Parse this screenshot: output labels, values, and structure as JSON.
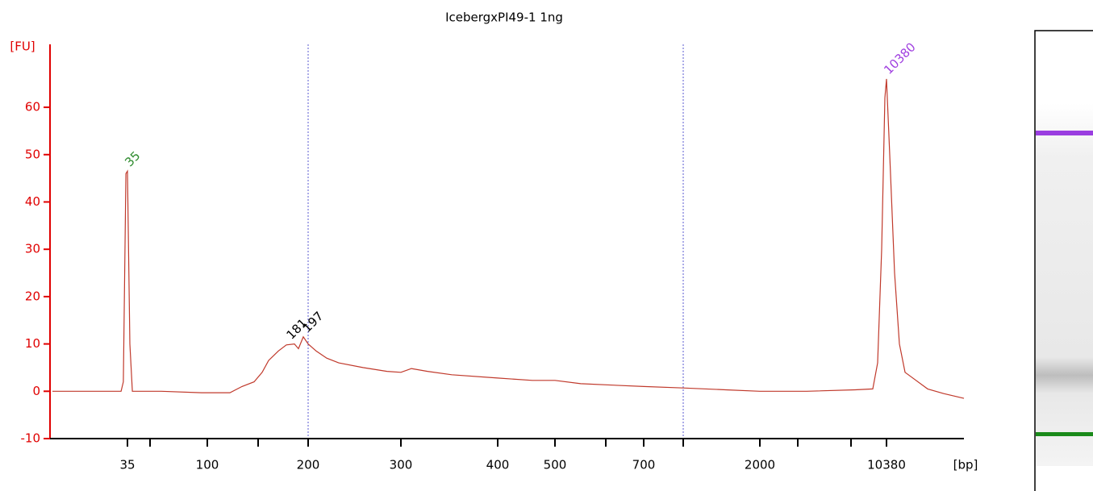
{
  "chart_data": {
    "type": "line",
    "title": "IcebergxPI49-1 1ng",
    "y_label": "[FU]",
    "x_label": "[bp]",
    "color": "#c0392b",
    "axis_color": "#e00000",
    "xlim": [
      15,
      15500
    ],
    "xticks": [
      35,
      100,
      200,
      300,
      400,
      500,
      700,
      2000,
      10380
    ],
    "ylim": [
      -10,
      73.3
    ],
    "yticks": [
      -10,
      0,
      10,
      20,
      30,
      40,
      50,
      60
    ],
    "x": [
      15,
      24.7,
      29,
      33.3,
      33.9,
      34.6,
      35,
      37,
      39,
      62.6,
      95.4,
      122.4,
      134.4,
      146.4,
      154.4,
      160.8,
      170.4,
      178.4,
      186.4,
      190.4,
      195.2,
      200,
      208.7,
      220,
      233,
      259,
      285,
      300,
      310.8,
      327.5,
      352.5,
      400,
      460.6,
      500,
      558,
      631,
      700,
      1141,
      1618,
      2000,
      5095,
      8297,
      9471,
      9791,
      10060,
      10273,
      10380,
      10593,
      10913,
      11234,
      11607,
      12034,
      13101,
      14168,
      15500
    ],
    "values": [
      0,
      0,
      0,
      0,
      2,
      46,
      46.5,
      10,
      0,
      0,
      -0.3,
      -0.3,
      1,
      2,
      4,
      6.5,
      8.5,
      9.8,
      10,
      9,
      11.5,
      10,
      8.5,
      7,
      6,
      5,
      4.2,
      4,
      4.8,
      4.2,
      3.5,
      2.8,
      2.3,
      2.3,
      1.6,
      1.3,
      1,
      0.7,
      0.3,
      0,
      0,
      0.3,
      0.5,
      6,
      30,
      62,
      66,
      50,
      25,
      10,
      4,
      3,
      0.5,
      -0.5,
      -1.5
    ],
    "peaks": {
      "x": [
        35,
        181,
        197,
        10380
      ],
      "values": [
        46.5,
        10,
        11.5,
        66
      ],
      "colors": [
        "#2e8b2e",
        "#000000",
        "#000000",
        "#a040e0"
      ]
    }
  }
}
